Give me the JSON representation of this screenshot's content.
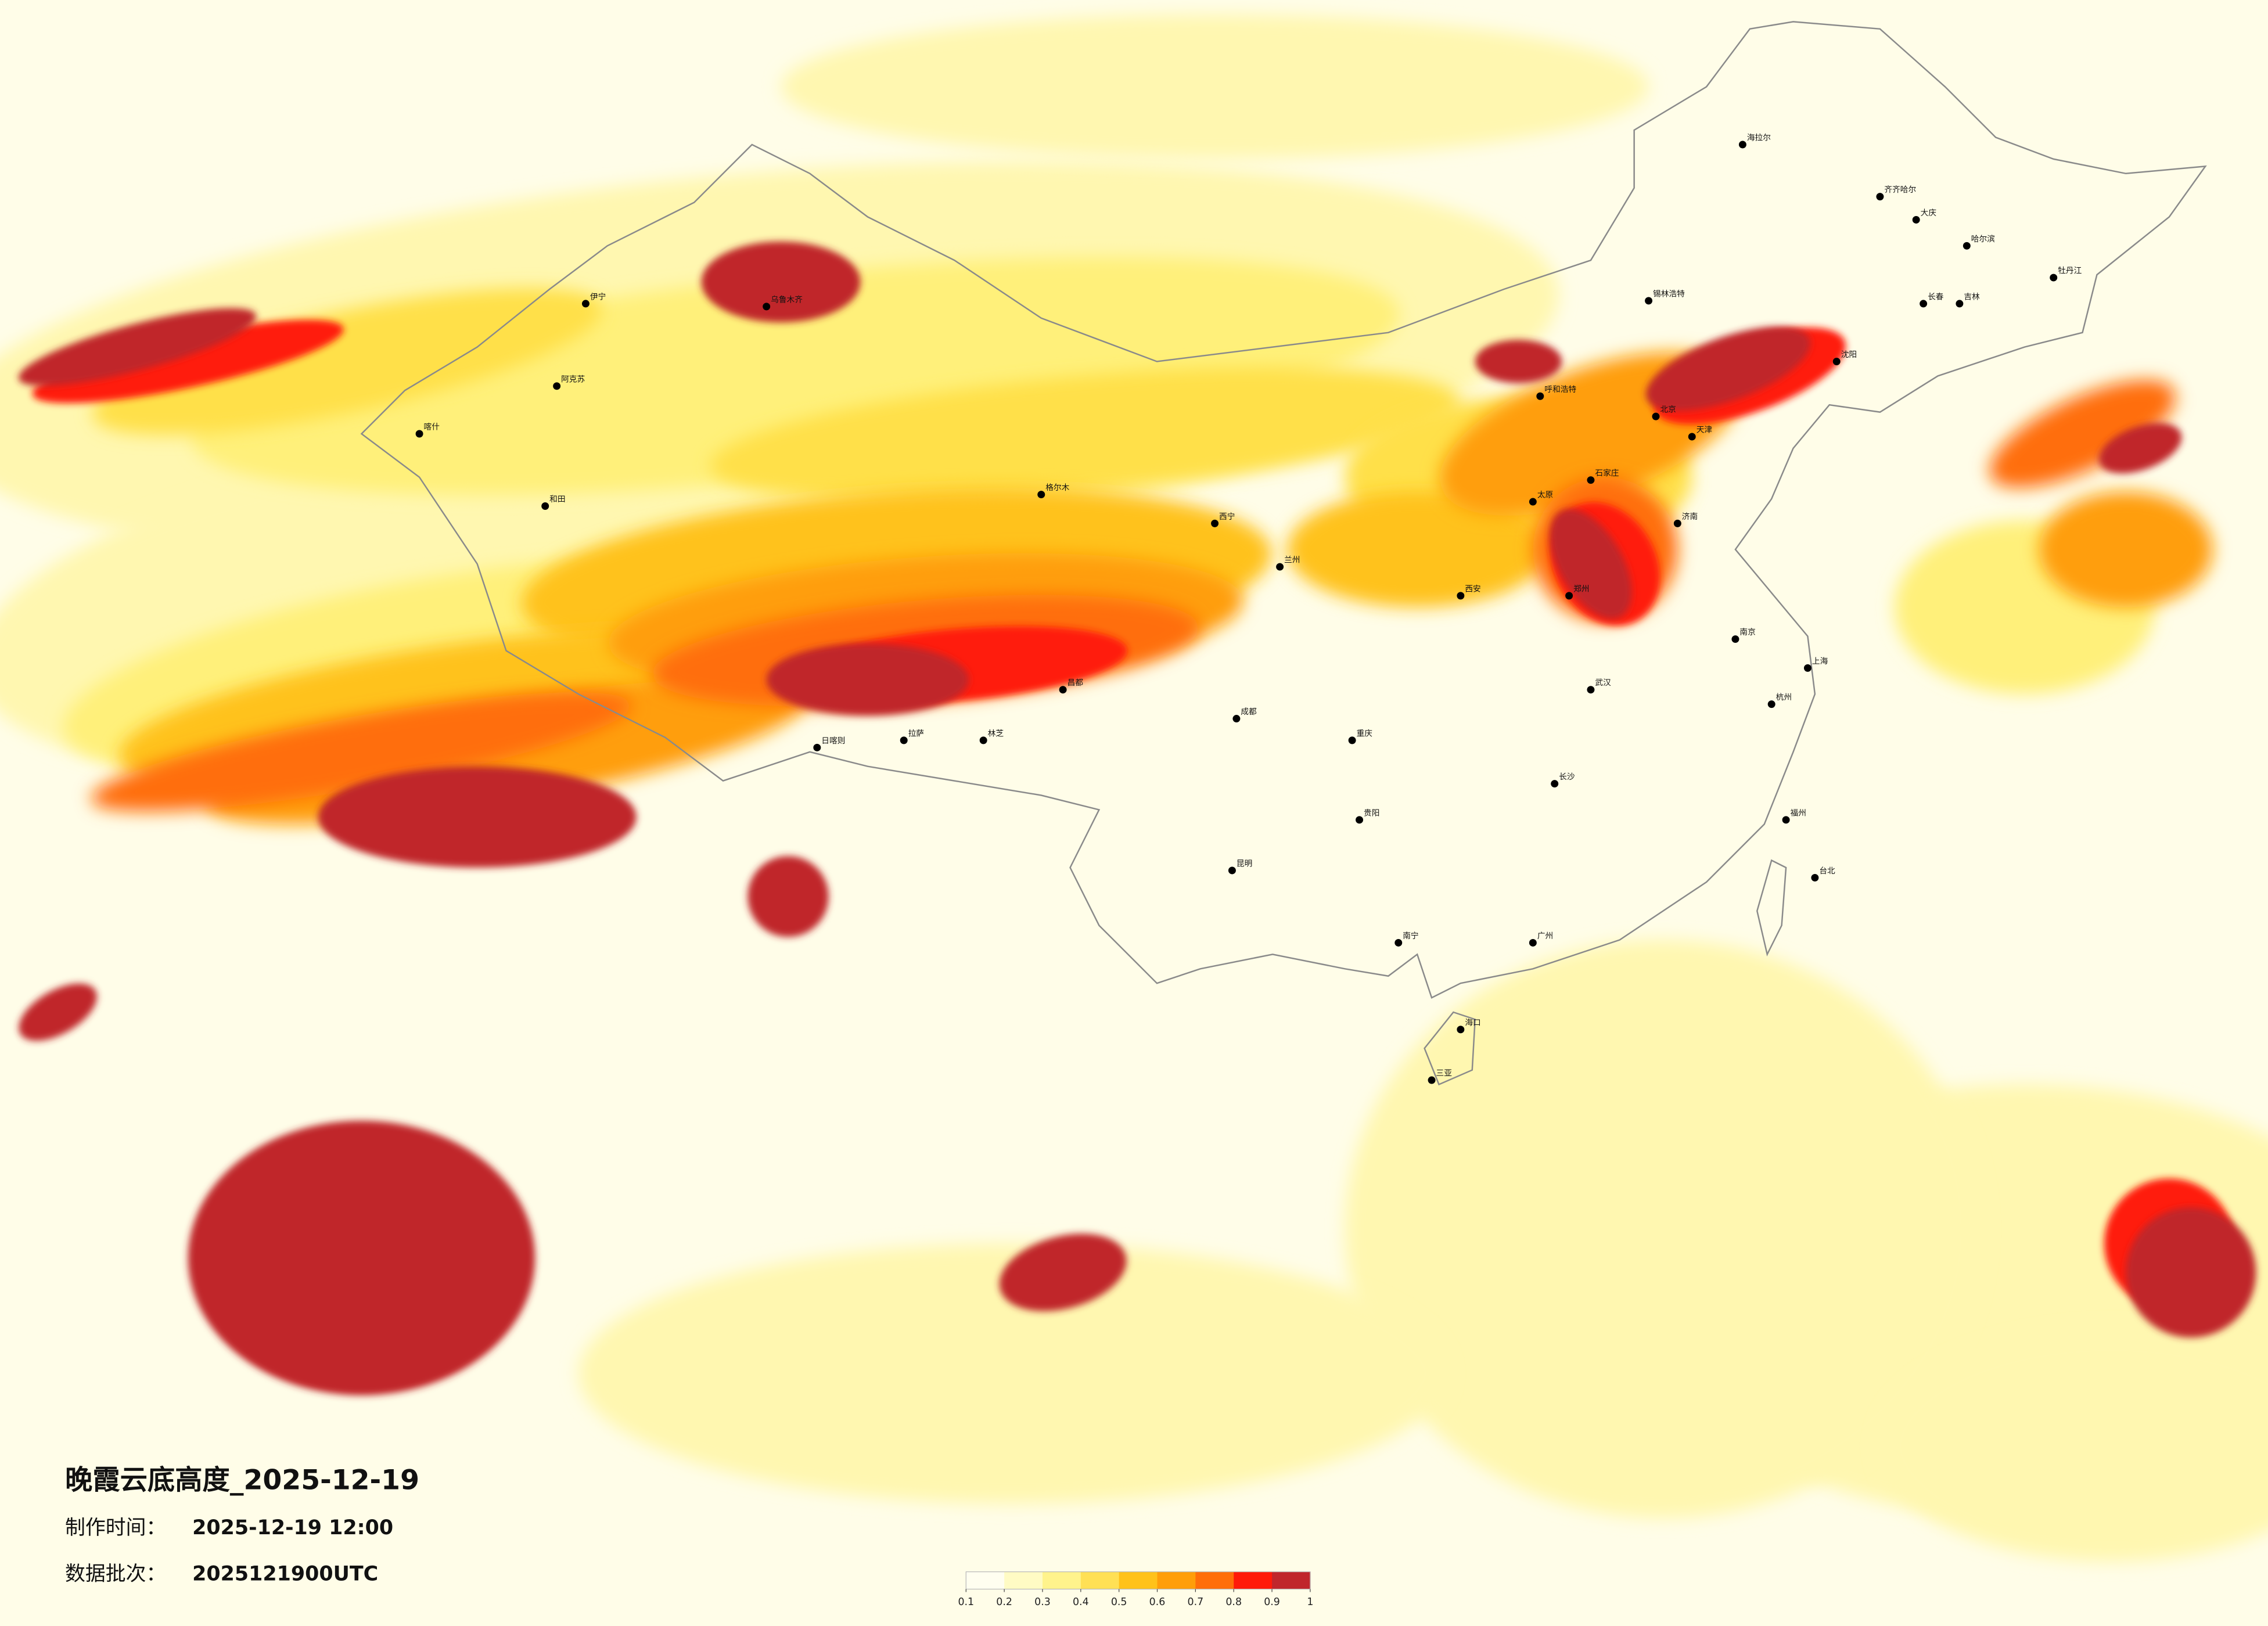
{
  "title": "晚霞云底高度_2025-12-19",
  "info": {
    "made_label": "制作时间：",
    "made_value": "2025-12-19 12:00",
    "batch_label": "数据批次：",
    "batch_value": "2025121900UTC"
  },
  "legend": {
    "ticks": [
      0.1,
      0.2,
      0.3,
      0.4,
      0.5,
      0.6,
      0.7,
      0.8,
      0.9,
      1
    ],
    "colors": [
      "#fffef0",
      "#fffbc4",
      "#fff38c",
      "#ffe055",
      "#ffc21a",
      "#ff9e0a",
      "#ff6e0a",
      "#ff1a0a",
      "#c0262c"
    ]
  },
  "cities": [
    "海拉尔",
    "齐齐哈尔",
    "大庆",
    "哈尔滨",
    "牡丹江",
    "长春",
    "吉林",
    "沈阳",
    "锡林浩特",
    "呼和浩特",
    "北京",
    "天津",
    "石家庄",
    "太原",
    "济南",
    "郑州",
    "西安",
    "兰州",
    "西宁",
    "格尔木",
    "乌鲁木齐",
    "伊宁",
    "阿克苏",
    "喀什",
    "和田",
    "拉萨",
    "日喀则",
    "林芝",
    "昌都",
    "成都",
    "重庆",
    "贵阳",
    "昆明",
    "南宁",
    "海口",
    "三亚",
    "长沙",
    "武汉",
    "南京",
    "上海",
    "杭州",
    "福州",
    "广州",
    "台北"
  ]
}
